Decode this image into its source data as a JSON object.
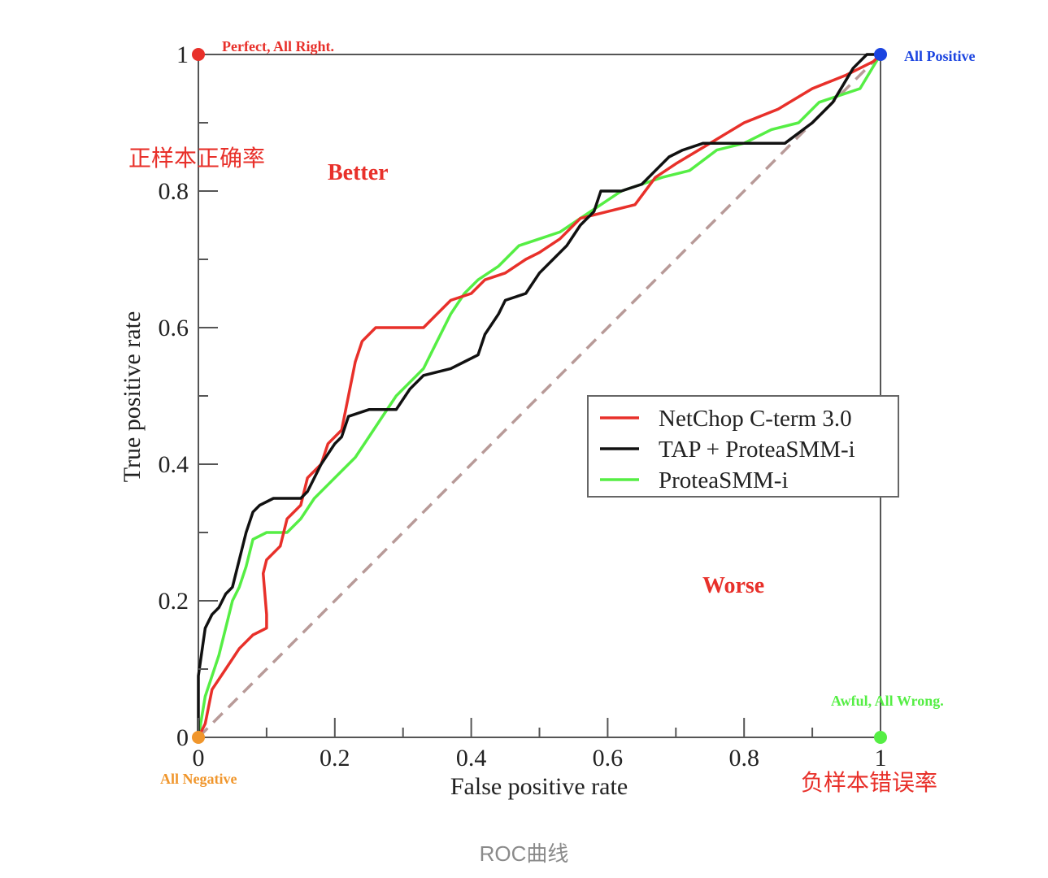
{
  "caption": "ROC曲线",
  "chart_data": {
    "type": "line",
    "xlabel": "False positive rate",
    "ylabel": "True positive rate",
    "xlim": [
      0,
      1
    ],
    "ylim": [
      0,
      1
    ],
    "xticks": [
      "0",
      "0.2",
      "0.4",
      "0.6",
      "0.8",
      "1"
    ],
    "yticks": [
      "0",
      "0.2",
      "0.4",
      "0.6",
      "0.8",
      "1"
    ],
    "grid": false,
    "legend_position": "center-right",
    "series": [
      {
        "name": "NetChop C-term 3.0",
        "color": "#e8302a",
        "points": [
          [
            0,
            0
          ],
          [
            0.01,
            0.02
          ],
          [
            0.02,
            0.07
          ],
          [
            0.04,
            0.1
          ],
          [
            0.06,
            0.13
          ],
          [
            0.08,
            0.15
          ],
          [
            0.1,
            0.16
          ],
          [
            0.1,
            0.18
          ],
          [
            0.095,
            0.24
          ],
          [
            0.1,
            0.26
          ],
          [
            0.12,
            0.28
          ],
          [
            0.13,
            0.32
          ],
          [
            0.15,
            0.34
          ],
          [
            0.16,
            0.38
          ],
          [
            0.18,
            0.4
          ],
          [
            0.19,
            0.43
          ],
          [
            0.21,
            0.45
          ],
          [
            0.22,
            0.5
          ],
          [
            0.23,
            0.55
          ],
          [
            0.24,
            0.58
          ],
          [
            0.26,
            0.6
          ],
          [
            0.29,
            0.6
          ],
          [
            0.33,
            0.6
          ],
          [
            0.35,
            0.62
          ],
          [
            0.37,
            0.64
          ],
          [
            0.4,
            0.65
          ],
          [
            0.42,
            0.67
          ],
          [
            0.45,
            0.68
          ],
          [
            0.48,
            0.7
          ],
          [
            0.5,
            0.71
          ],
          [
            0.53,
            0.73
          ],
          [
            0.56,
            0.76
          ],
          [
            0.6,
            0.77
          ],
          [
            0.64,
            0.78
          ],
          [
            0.67,
            0.82
          ],
          [
            0.7,
            0.84
          ],
          [
            0.75,
            0.87
          ],
          [
            0.8,
            0.9
          ],
          [
            0.85,
            0.92
          ],
          [
            0.9,
            0.95
          ],
          [
            0.95,
            0.97
          ],
          [
            0.99,
            0.99
          ],
          [
            1,
            1
          ]
        ]
      },
      {
        "name": "TAP + ProteaSMM-i",
        "color": "#111111",
        "points": [
          [
            0,
            0
          ],
          [
            0,
            0.09
          ],
          [
            0.01,
            0.16
          ],
          [
            0.02,
            0.18
          ],
          [
            0.03,
            0.19
          ],
          [
            0.04,
            0.21
          ],
          [
            0.05,
            0.22
          ],
          [
            0.06,
            0.26
          ],
          [
            0.07,
            0.3
          ],
          [
            0.08,
            0.33
          ],
          [
            0.09,
            0.34
          ],
          [
            0.11,
            0.35
          ],
          [
            0.13,
            0.35
          ],
          [
            0.15,
            0.35
          ],
          [
            0.16,
            0.36
          ],
          [
            0.17,
            0.38
          ],
          [
            0.18,
            0.4
          ],
          [
            0.2,
            0.43
          ],
          [
            0.21,
            0.44
          ],
          [
            0.22,
            0.47
          ],
          [
            0.25,
            0.48
          ],
          [
            0.29,
            0.48
          ],
          [
            0.31,
            0.51
          ],
          [
            0.33,
            0.53
          ],
          [
            0.37,
            0.54
          ],
          [
            0.39,
            0.55
          ],
          [
            0.41,
            0.56
          ],
          [
            0.42,
            0.59
          ],
          [
            0.44,
            0.62
          ],
          [
            0.45,
            0.64
          ],
          [
            0.48,
            0.65
          ],
          [
            0.5,
            0.68
          ],
          [
            0.52,
            0.7
          ],
          [
            0.54,
            0.72
          ],
          [
            0.56,
            0.75
          ],
          [
            0.58,
            0.77
          ],
          [
            0.59,
            0.8
          ],
          [
            0.62,
            0.8
          ],
          [
            0.65,
            0.81
          ],
          [
            0.67,
            0.83
          ],
          [
            0.69,
            0.85
          ],
          [
            0.71,
            0.86
          ],
          [
            0.74,
            0.87
          ],
          [
            0.8,
            0.87
          ],
          [
            0.86,
            0.87
          ],
          [
            0.9,
            0.9
          ],
          [
            0.93,
            0.93
          ],
          [
            0.96,
            0.98
          ],
          [
            0.98,
            1
          ],
          [
            1,
            1
          ]
        ]
      },
      {
        "name": "ProteaSMM-i",
        "color": "#55ee44",
        "points": [
          [
            0,
            0
          ],
          [
            0.01,
            0.06
          ],
          [
            0.02,
            0.09
          ],
          [
            0.03,
            0.12
          ],
          [
            0.04,
            0.16
          ],
          [
            0.05,
            0.2
          ],
          [
            0.06,
            0.22
          ],
          [
            0.07,
            0.25
          ],
          [
            0.08,
            0.29
          ],
          [
            0.1,
            0.3
          ],
          [
            0.13,
            0.3
          ],
          [
            0.15,
            0.32
          ],
          [
            0.17,
            0.35
          ],
          [
            0.19,
            0.37
          ],
          [
            0.21,
            0.39
          ],
          [
            0.23,
            0.41
          ],
          [
            0.25,
            0.44
          ],
          [
            0.27,
            0.47
          ],
          [
            0.29,
            0.5
          ],
          [
            0.31,
            0.52
          ],
          [
            0.33,
            0.54
          ],
          [
            0.35,
            0.58
          ],
          [
            0.37,
            0.62
          ],
          [
            0.39,
            0.65
          ],
          [
            0.41,
            0.67
          ],
          [
            0.44,
            0.69
          ],
          [
            0.47,
            0.72
          ],
          [
            0.5,
            0.73
          ],
          [
            0.53,
            0.74
          ],
          [
            0.56,
            0.76
          ],
          [
            0.59,
            0.78
          ],
          [
            0.62,
            0.8
          ],
          [
            0.65,
            0.81
          ],
          [
            0.68,
            0.82
          ],
          [
            0.72,
            0.83
          ],
          [
            0.76,
            0.86
          ],
          [
            0.8,
            0.87
          ],
          [
            0.84,
            0.89
          ],
          [
            0.88,
            0.9
          ],
          [
            0.91,
            0.93
          ],
          [
            0.94,
            0.94
          ],
          [
            0.97,
            0.95
          ],
          [
            1,
            1
          ]
        ]
      }
    ],
    "reference_line": {
      "from": [
        0,
        0
      ],
      "to": [
        1,
        1
      ],
      "style": "dashed",
      "color": "#b89a98"
    },
    "annotations": [
      {
        "text": "Perfect, All Right.",
        "x": 0,
        "y": 1,
        "color": "#e8302a",
        "marker": true
      },
      {
        "text": "All Positive",
        "x": 1,
        "y": 1,
        "color": "#1b44e0",
        "marker": true
      },
      {
        "text": "Awful, All Wrong.",
        "x": 1,
        "y": 0,
        "color": "#55ee44",
        "marker": true
      },
      {
        "text": "All Negative",
        "x": 0,
        "y": 0,
        "color": "#f0962c",
        "marker": true
      },
      {
        "text": "Better",
        "color": "#e8302a",
        "marker": false
      },
      {
        "text": "Worse",
        "color": "#e8302a",
        "marker": false
      },
      {
        "text": "正样本正确率",
        "color": "#e8302a",
        "marker": false
      },
      {
        "text": "负样本错误率",
        "color": "#e8302a",
        "marker": false
      }
    ]
  }
}
